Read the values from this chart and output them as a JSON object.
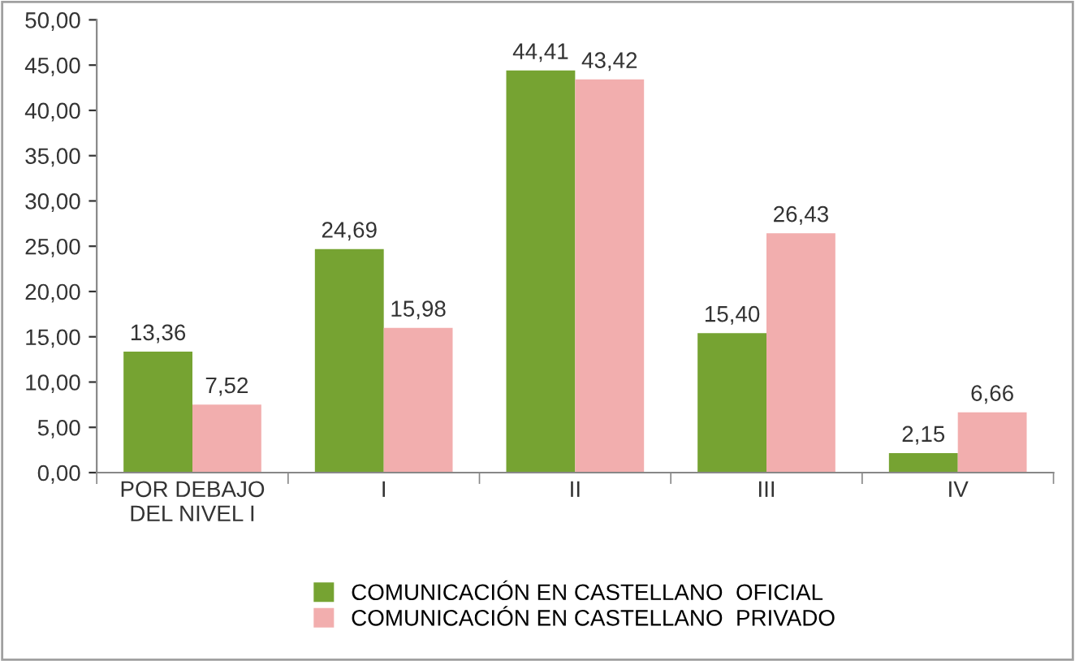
{
  "chart_data": {
    "type": "bar",
    "categories": [
      "POR DEBAJO\nDEL NIVEL I",
      "I",
      "II",
      "III",
      "IV"
    ],
    "series": [
      {
        "name": "COMUNICACIÓN EN CASTELLANO  OFICIAL",
        "color": "#76a332",
        "values": [
          13.36,
          24.69,
          44.41,
          15.4,
          2.15
        ],
        "value_labels": [
          "13,36",
          "24,69",
          "44,41",
          "15,40",
          "2,15"
        ]
      },
      {
        "name": "COMUNICACIÓN EN CASTELLANO  PRIVADO",
        "color": "#f2aeae",
        "values": [
          7.52,
          15.98,
          43.42,
          26.43,
          6.66
        ],
        "value_labels": [
          "7,52",
          "15,98",
          "43,42",
          "26,43",
          "6,66"
        ]
      }
    ],
    "ylim": [
      0,
      50
    ],
    "yticks": [
      {
        "value": 0,
        "label": "0,00"
      },
      {
        "value": 5,
        "label": "5,00"
      },
      {
        "value": 10,
        "label": "10,00"
      },
      {
        "value": 15,
        "label": "15,00"
      },
      {
        "value": 20,
        "label": "20,00"
      },
      {
        "value": 25,
        "label": "25,00"
      },
      {
        "value": 30,
        "label": "30,00"
      },
      {
        "value": 35,
        "label": "35,00"
      },
      {
        "value": 40,
        "label": "40,00"
      },
      {
        "value": 45,
        "label": "45,00"
      },
      {
        "value": 50,
        "label": "50,00"
      }
    ],
    "grid": false,
    "legend": "bottom"
  }
}
